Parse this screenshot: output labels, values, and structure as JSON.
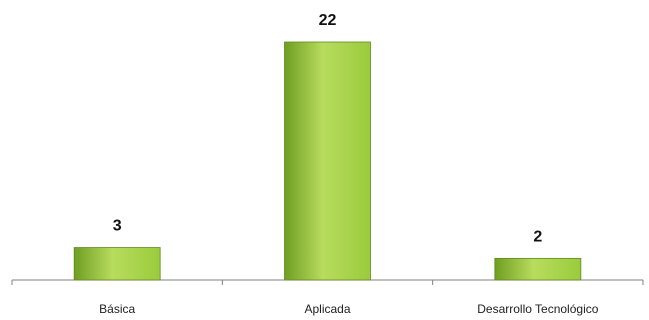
{
  "chart_data": {
    "type": "bar",
    "title": "",
    "xlabel": "",
    "ylabel": "",
    "categories": [
      "Básica",
      "Aplicada",
      "Desarrollo Tecnológico"
    ],
    "values": [
      3,
      22,
      2
    ],
    "data_labels": [
      "3",
      "22",
      "2"
    ],
    "ylim": [
      0,
      22
    ],
    "grid": false,
    "legend": "none",
    "colors": {
      "bar_light": "#b8dc5e",
      "bar_mid": "#9acb3c",
      "bar_dark": "#6f9e22",
      "bar_stroke": "#5f8a1c",
      "axis": "#808080"
    }
  }
}
